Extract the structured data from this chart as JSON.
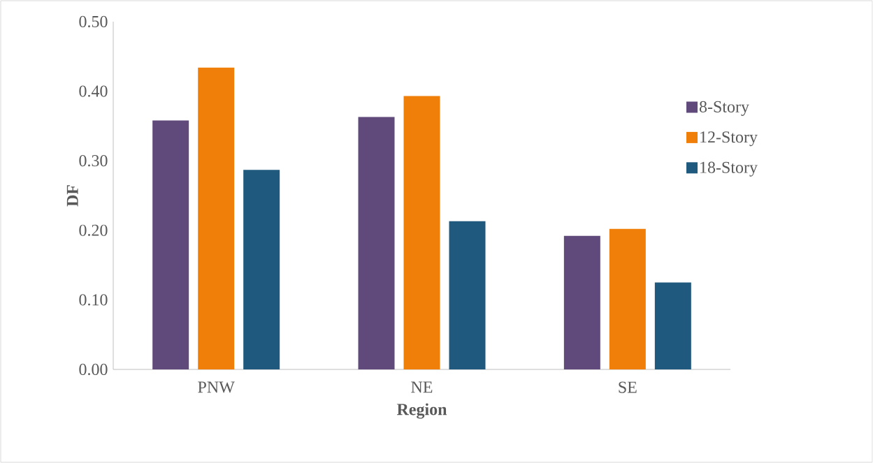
{
  "chart_data": {
    "type": "bar",
    "xlabel": "Region",
    "ylabel": "DF",
    "categories": [
      "PNW",
      "NE",
      "SE"
    ],
    "series": [
      {
        "name": "8-Story",
        "color": "#604a7b",
        "values": [
          0.358,
          0.363,
          0.192
        ]
      },
      {
        "name": "12-Story",
        "color": "#f07f09",
        "values": [
          0.434,
          0.393,
          0.202
        ]
      },
      {
        "name": "18-Story",
        "color": "#1f5a7e",
        "values": [
          0.287,
          0.213,
          0.125
        ]
      }
    ],
    "ylim": [
      0,
      0.5
    ],
    "yticks": [
      {
        "value": 0,
        "label": "0.00"
      },
      {
        "value": 0.1,
        "label": "0.10"
      },
      {
        "value": 0.2,
        "label": "0.20"
      },
      {
        "value": 0.3,
        "label": "0.30"
      },
      {
        "value": 0.4,
        "label": "0.40"
      },
      {
        "value": 0.5,
        "label": "0.50"
      }
    ],
    "grid": false,
    "legend": "right"
  }
}
